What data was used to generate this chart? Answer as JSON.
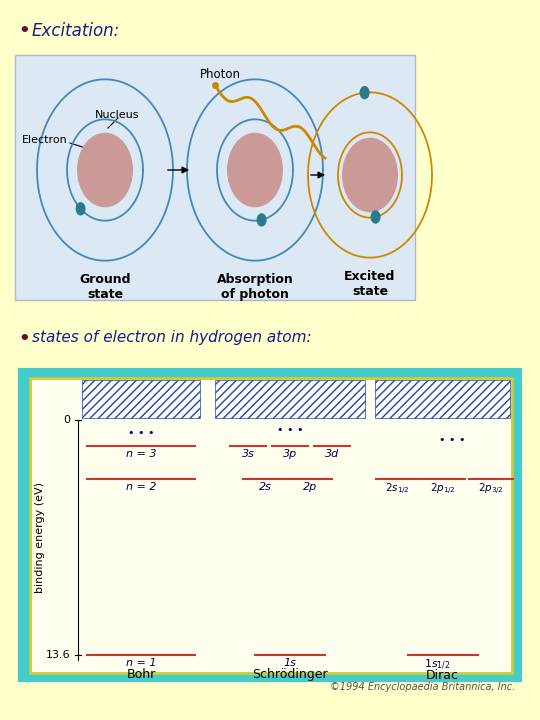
{
  "bg_color": "#ffffcc",
  "title1": "Excitation:",
  "title2": "states of electron in hydrogen atom:",
  "bullet_color": "#6b0a2e",
  "title_color": "#1a1a8c",
  "atom_diagram": {
    "bg_color": "#dce9f5",
    "nucleus_color": "#cc9999",
    "electron_color": "#2a7a8a",
    "orbit_color_blue": "#4488bb",
    "orbit_color_gold": "#cc8800",
    "photon_color": "#cc8800",
    "label_color": "#000000",
    "label_fontsize": 9,
    "annotation_fontsize": 8
  },
  "energy_diagram": {
    "outer_border_color": "#44cccc",
    "inner_border_color": "#cccc33",
    "bg_color": "#fffff0",
    "hatch_color": "#2244aa",
    "level_color": "#cc3333",
    "dot_color": "#000066",
    "ylabel": "binding energy (eV)",
    "bohr_label": "Bohr",
    "schrodinger_label": "Schrödinger",
    "dirac_label": "Dirac",
    "copyright": "©1994 Encyclopaedia Britannica, Inc."
  }
}
